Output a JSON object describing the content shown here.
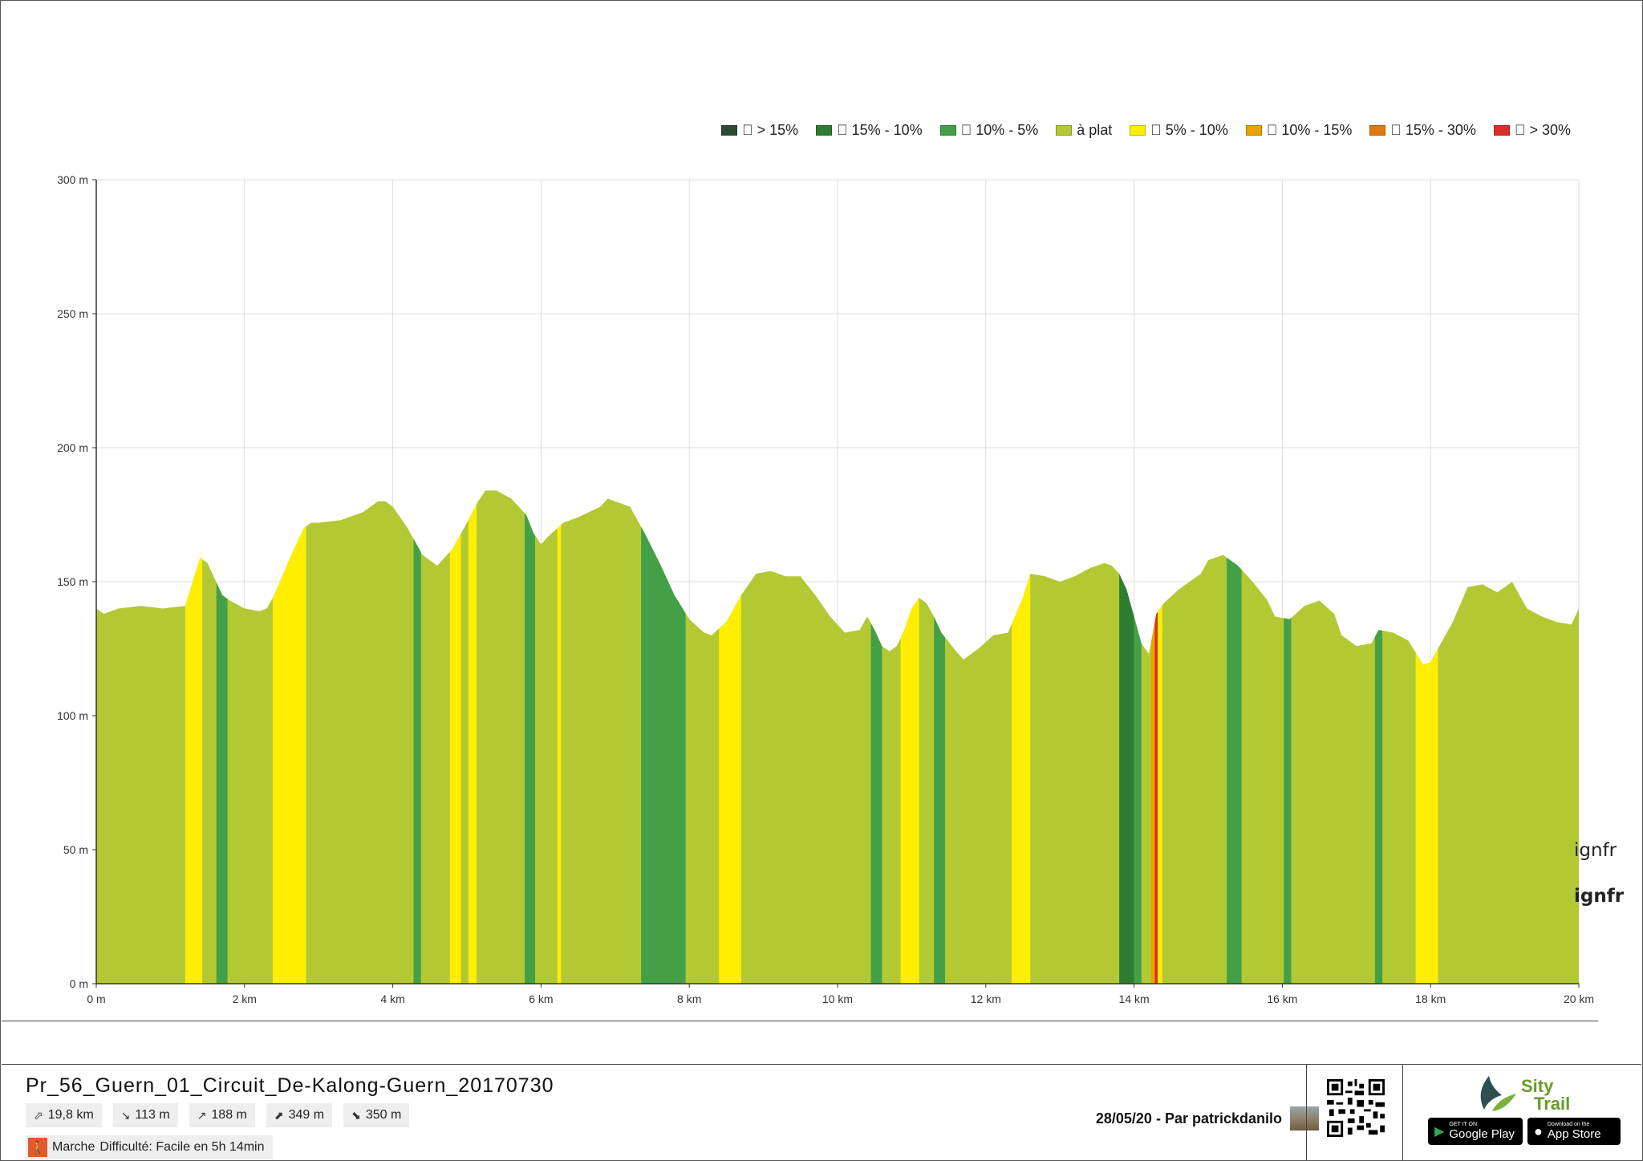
{
  "legend": [
    {
      "label": "\u0000 > 15%",
      "color": "#2d4a33"
    },
    {
      "label": "\u0000 15% - 10%",
      "color": "#2e7d32"
    },
    {
      "label": "\u0000 10% - 5%",
      "color": "#43a047"
    },
    {
      "label": "à plat",
      "color": "#b3c934"
    },
    {
      "label": "\u0000 5% - 10%",
      "color": "#ffee00"
    },
    {
      "label": "\u0000 10% - 15%",
      "color": "#e6a500"
    },
    {
      "label": "\u0000 15% - 30%",
      "color": "#e07a10"
    },
    {
      "label": "\u0000 > 30%",
      "color": "#d93025"
    }
  ],
  "chart_data": {
    "type": "area",
    "title": "",
    "xlabel": "",
    "ylabel": "",
    "xlim": [
      0,
      20
    ],
    "ylim": [
      0,
      300
    ],
    "x_ticks": [
      "0 m",
      "2 km",
      "4 km",
      "6 km",
      "8 km",
      "10 km",
      "12 km",
      "14 km",
      "16 km",
      "18 km",
      "20 km"
    ],
    "y_ticks": [
      "0 m",
      "50 m",
      "100 m",
      "150 m",
      "200 m",
      "250 m",
      "300 m"
    ],
    "grid": true,
    "legend_position": "top-right",
    "x_km": [
      0,
      0.1,
      0.3,
      0.6,
      0.9,
      1.2,
      1.3,
      1.4,
      1.5,
      1.6,
      1.7,
      1.8,
      2.0,
      2.2,
      2.3,
      2.4,
      2.6,
      2.8,
      2.9,
      3.0,
      3.3,
      3.6,
      3.8,
      3.9,
      4.0,
      4.2,
      4.4,
      4.6,
      4.8,
      5.0,
      5.15,
      5.25,
      5.4,
      5.6,
      5.8,
      5.9,
      6.0,
      6.1,
      6.3,
      6.5,
      6.8,
      6.9,
      7.1,
      7.2,
      7.4,
      7.6,
      7.8,
      8.0,
      8.2,
      8.3,
      8.5,
      8.7,
      8.9,
      9.1,
      9.3,
      9.5,
      9.7,
      9.9,
      10.1,
      10.3,
      10.4,
      10.5,
      10.6,
      10.7,
      10.8,
      10.9,
      11.0,
      11.1,
      11.2,
      11.3,
      11.4,
      11.6,
      11.7,
      11.9,
      12.1,
      12.3,
      12.5,
      12.6,
      12.8,
      13.0,
      13.2,
      13.4,
      13.6,
      13.7,
      13.8,
      13.9,
      14.0,
      14.1,
      14.2,
      14.3,
      14.4,
      14.6,
      14.9,
      15.0,
      15.2,
      15.4,
      15.6,
      15.8,
      15.9,
      16.1,
      16.3,
      16.5,
      16.7,
      16.8,
      17.0,
      17.2,
      17.3,
      17.5,
      17.7,
      17.9,
      18.0,
      18.1,
      18.3,
      18.5,
      18.7,
      18.9,
      19.1,
      19.3,
      19.5,
      19.7,
      19.9,
      20.0
    ],
    "elevation_m": [
      140,
      138,
      140,
      141,
      140,
      141,
      150,
      159,
      157,
      151,
      145,
      143,
      140,
      139,
      140,
      145,
      158,
      170,
      172,
      172,
      173,
      176,
      180,
      180,
      178,
      170,
      160,
      156,
      162,
      172,
      180,
      184,
      184,
      181,
      175,
      168,
      164,
      167,
      172,
      174,
      178,
      181,
      179,
      178,
      168,
      157,
      145,
      136,
      131,
      130,
      135,
      145,
      153,
      154,
      152,
      152,
      145,
      137,
      131,
      132,
      137,
      132,
      126,
      124,
      126,
      132,
      140,
      144,
      142,
      137,
      131,
      124,
      121,
      125,
      130,
      131,
      144,
      153,
      152,
      150,
      152,
      155,
      157,
      156,
      153,
      147,
      137,
      127,
      123,
      138,
      142,
      147,
      153,
      158,
      160,
      156,
      150,
      143,
      137,
      136,
      141,
      143,
      138,
      130,
      126,
      127,
      132,
      131,
      128,
      119,
      120,
      125,
      135,
      148,
      149,
      146,
      150,
      140,
      137,
      135,
      134,
      140
    ],
    "slope_bands": [
      {
        "from": 1.2,
        "to": 1.43,
        "class": "5% - 10%"
      },
      {
        "from": 1.62,
        "to": 1.77,
        "class": "10% - 5%"
      },
      {
        "from": 2.38,
        "to": 2.83,
        "class": "5% - 10%"
      },
      {
        "from": 4.28,
        "to": 4.38,
        "class": "10% - 5%"
      },
      {
        "from": 4.77,
        "to": 4.92,
        "class": "5% - 10%"
      },
      {
        "from": 5.02,
        "to": 5.13,
        "class": "5% - 10%"
      },
      {
        "from": 5.78,
        "to": 5.92,
        "class": "10% - 5%"
      },
      {
        "from": 6.22,
        "to": 6.27,
        "class": "5% - 10%"
      },
      {
        "from": 7.35,
        "to": 7.95,
        "class": "10% - 5%"
      },
      {
        "from": 8.4,
        "to": 8.7,
        "class": "5% - 10%"
      },
      {
        "from": 10.45,
        "to": 10.6,
        "class": "10% - 5%"
      },
      {
        "from": 10.85,
        "to": 11.1,
        "class": "5% - 10%"
      },
      {
        "from": 11.3,
        "to": 11.45,
        "class": "10% - 5%"
      },
      {
        "from": 12.35,
        "to": 12.6,
        "class": "5% - 10%"
      },
      {
        "from": 13.8,
        "to": 14.0,
        "class": "15% - 10%"
      },
      {
        "from": 14.0,
        "to": 14.1,
        "class": "10% - 5%"
      },
      {
        "from": 14.23,
        "to": 14.28,
        "class": "10% - 15%"
      },
      {
        "from": 14.28,
        "to": 14.32,
        "class": "> 30%"
      },
      {
        "from": 14.32,
        "to": 14.38,
        "class": "5% - 10%"
      },
      {
        "from": 15.25,
        "to": 15.45,
        "class": "10% - 5%"
      },
      {
        "from": 16.02,
        "to": 16.12,
        "class": "10% - 5%"
      },
      {
        "from": 17.25,
        "to": 17.35,
        "class": "10% - 5%"
      },
      {
        "from": 17.8,
        "to": 18.1,
        "class": "5% - 10%"
      }
    ],
    "colors": {
      "area": "#b3c934",
      "> 15%": "#2d4a33",
      "15% - 10%": "#2e7d32",
      "10% - 5%": "#43a047",
      "5% - 10%": "#ffee00",
      "10% - 15%": "#e6a500",
      "15% - 30%": "#e07a10",
      "> 30%": "#d93025"
    }
  },
  "watermark": "ignfr",
  "track": {
    "title": "Pr_56_Guern_01_Circuit_De-Kalong-Guern_20170730",
    "distance": "19,8 km",
    "min_elevation": "113 m",
    "max_elevation": "188 m",
    "ascent": "349 m",
    "descent": "350 m",
    "activity": "Marche",
    "difficulty": "Difficulté: Facile en 5h 14min"
  },
  "author_line": "28/05/20 - Par patrickdanilo",
  "brand": {
    "line1": "Sity",
    "line2": "Trail"
  },
  "stores": {
    "google_small": "GET IT ON",
    "google": "Google Play",
    "apple_small": "Download on the",
    "apple": "App Store"
  }
}
